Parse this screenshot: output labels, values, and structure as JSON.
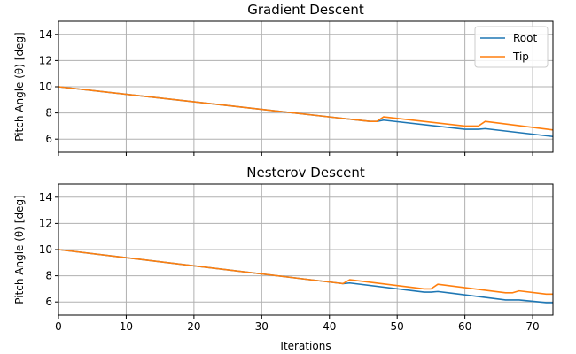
{
  "chart_data": [
    {
      "type": "line",
      "title": "Gradient Descent",
      "xlabel": "",
      "ylabel": "Pitch Angle (θ) [deg]",
      "xlim": [
        0,
        73
      ],
      "ylim": [
        5,
        15
      ],
      "xticks": [
        0,
        10,
        20,
        30,
        40,
        50,
        60,
        70
      ],
      "yticks": [
        6,
        8,
        10,
        12,
        14
      ],
      "show_xticklabels": false,
      "grid": true,
      "legend": "top-right",
      "series": [
        {
          "name": "Root",
          "color": "#1f77b4",
          "x": [
            0,
            46,
            47,
            48,
            60,
            62,
            63,
            73
          ],
          "y": [
            10.0,
            7.35,
            7.35,
            7.45,
            6.75,
            6.75,
            6.8,
            6.2
          ]
        },
        {
          "name": "Tip",
          "color": "#ff7f0e",
          "x": [
            0,
            46,
            47,
            48,
            60,
            62,
            63,
            73
          ],
          "y": [
            10.0,
            7.35,
            7.35,
            7.7,
            7.0,
            7.0,
            7.35,
            6.7
          ]
        }
      ]
    },
    {
      "type": "line",
      "title": "Nesterov Descent",
      "xlabel": "Iterations",
      "ylabel": "Pitch Angle (θ) [deg]",
      "xlim": [
        0,
        73
      ],
      "ylim": [
        5,
        15
      ],
      "xticks": [
        0,
        10,
        20,
        30,
        40,
        50,
        60,
        70
      ],
      "yticks": [
        6,
        8,
        10,
        12,
        14
      ],
      "show_xticklabels": true,
      "grid": true,
      "legend": "none",
      "series": [
        {
          "name": "Root",
          "color": "#1f77b4",
          "x": [
            0,
            42,
            43,
            54,
            55,
            56,
            66,
            67,
            68,
            72,
            73
          ],
          "y": [
            10.0,
            7.4,
            7.45,
            6.75,
            6.75,
            6.8,
            6.15,
            6.15,
            6.15,
            5.95,
            5.95
          ]
        },
        {
          "name": "Tip",
          "color": "#ff7f0e",
          "x": [
            0,
            42,
            43,
            54,
            55,
            56,
            66,
            67,
            68,
            72,
            73
          ],
          "y": [
            10.0,
            7.4,
            7.7,
            7.0,
            7.0,
            7.35,
            6.7,
            6.7,
            6.85,
            6.6,
            6.6
          ]
        }
      ]
    }
  ]
}
